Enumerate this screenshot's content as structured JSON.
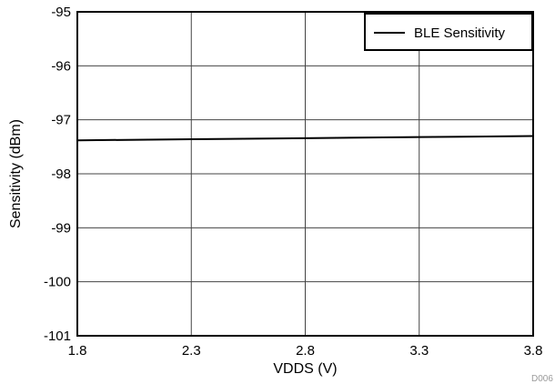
{
  "chart_data": {
    "type": "line",
    "title": "",
    "xlabel": "VDDS (V)",
    "ylabel": "Sensitivity (dBm)",
    "xlim": [
      1.8,
      3.8
    ],
    "ylim": [
      -101,
      -95
    ],
    "xticks": [
      1.8,
      2.3,
      2.8,
      3.3,
      3.8
    ],
    "xtick_labels": [
      "1.8",
      "2.3",
      "2.8",
      "3.3",
      "3.8"
    ],
    "yticks": [
      -95,
      -96,
      -97,
      -98,
      -99,
      -100,
      -101
    ],
    "ytick_labels": [
      "-95",
      "-96",
      "-97",
      "-98",
      "-99",
      "-100",
      "-101"
    ],
    "grid": true,
    "legend_position": "top-right",
    "series": [
      {
        "name": "BLE Sensitivity",
        "color": "#000000",
        "x": [
          1.8,
          2.3,
          2.8,
          3.3,
          3.8
        ],
        "y": [
          -97.38,
          -97.36,
          -97.34,
          -97.32,
          -97.3
        ]
      }
    ]
  },
  "footnote": "D006"
}
